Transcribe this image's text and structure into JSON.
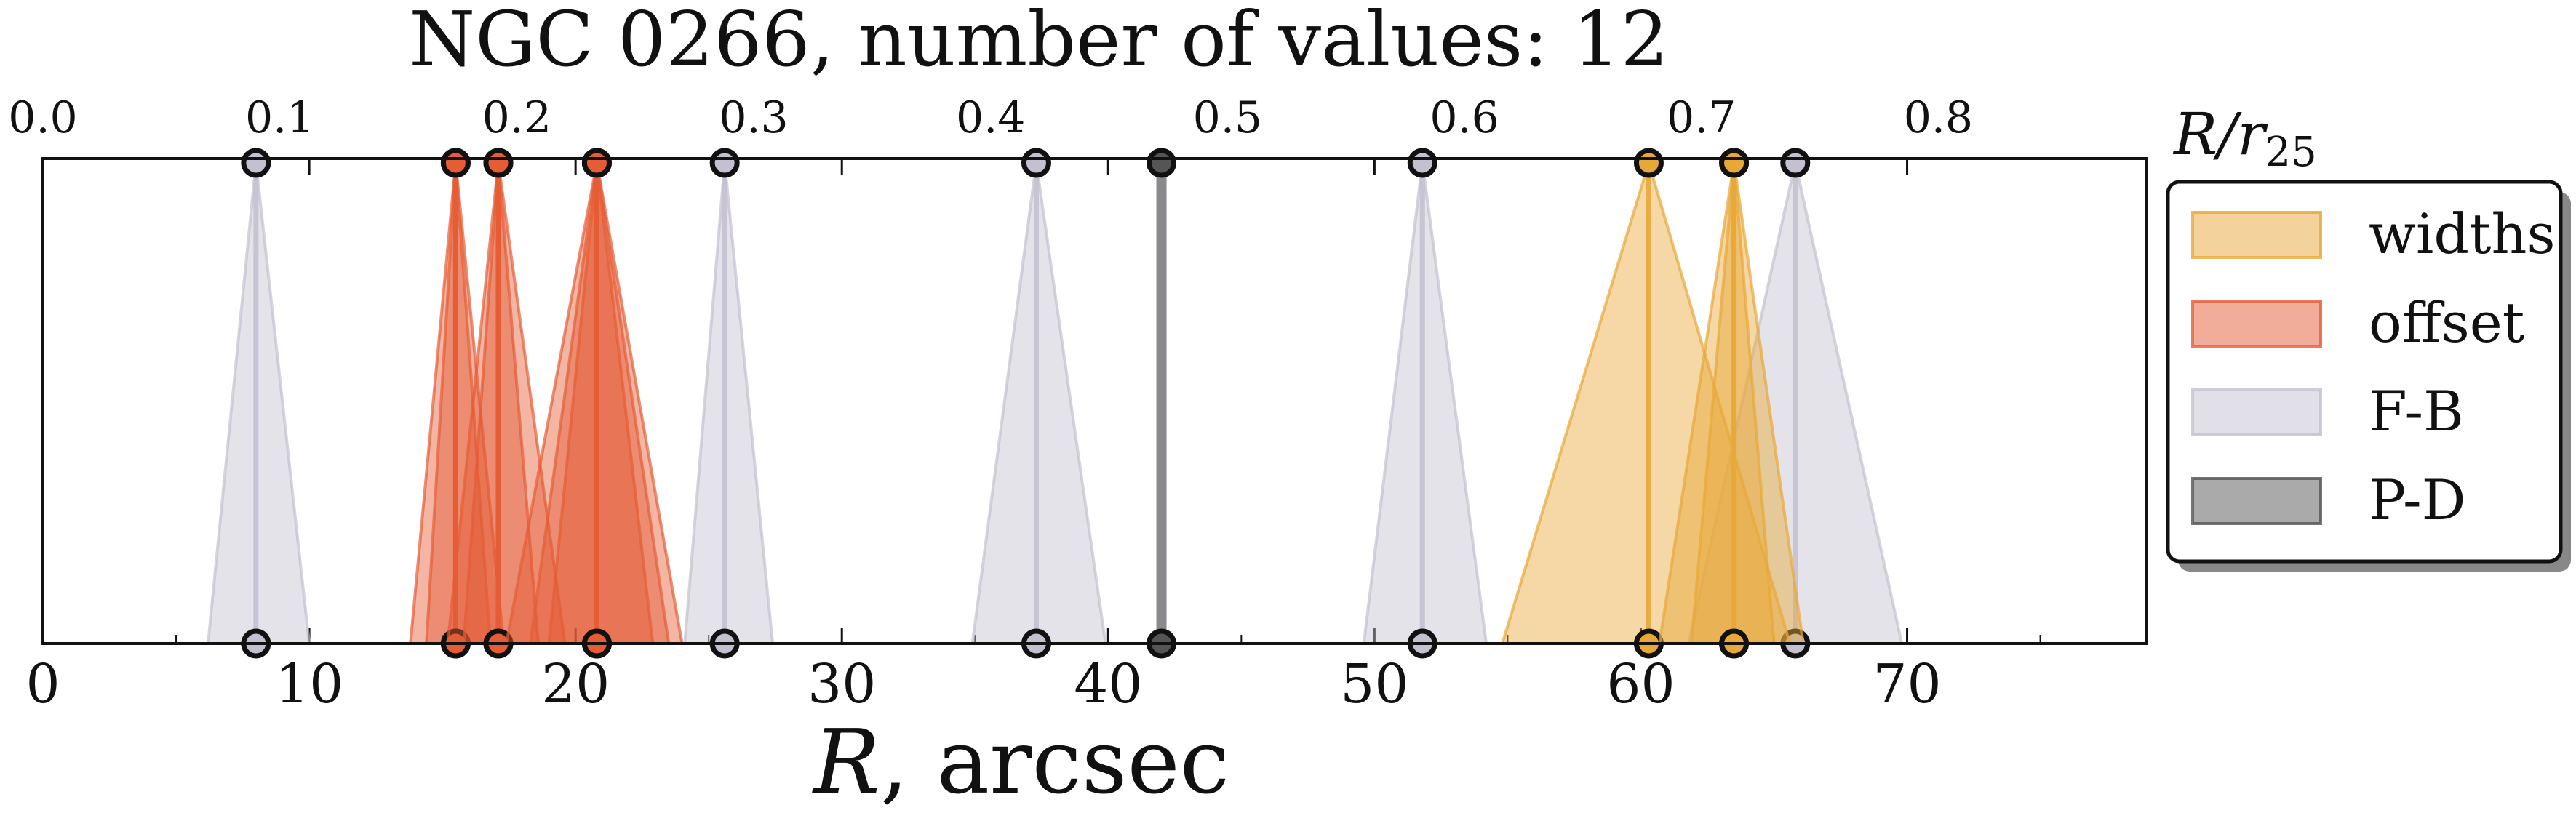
{
  "chart_data": {
    "type": "area",
    "title": "NGC 0266, number of values: 12",
    "xlabel": "R, arcsec",
    "xlabel_italic": "R",
    "xlabel_rest": ", arcsec",
    "top_axis_label": "R/r25",
    "top_axis_label_main": "R/r",
    "top_axis_label_sub": "25",
    "xlim": [
      0,
      79
    ],
    "top_xlim": [
      0.0,
      0.888
    ],
    "x_ticks": [
      "0",
      "10",
      "20",
      "30",
      "40",
      "50",
      "60",
      "70"
    ],
    "top_ticks": [
      "0.0",
      "0.1",
      "0.2",
      "0.3",
      "0.4",
      "0.5",
      "0.6",
      "0.7",
      "0.8"
    ],
    "grid": false,
    "legend_position": "right",
    "legend": [
      {
        "label": "widths",
        "color": "#e8a838"
      },
      {
        "label": "offset",
        "color": "#e55c35"
      },
      {
        "label": "F-B",
        "color": "#c4c0d0"
      },
      {
        "label": "P-D",
        "color": "#555555"
      }
    ],
    "series": [
      {
        "name": "F-B",
        "color": "#c4c0d0",
        "triangles": [
          {
            "center": 8.0,
            "low": 6.2,
            "high": 10.0
          },
          {
            "center": 25.6,
            "low": 24.1,
            "high": 27.4
          },
          {
            "center": 37.3,
            "low": 34.9,
            "high": 39.9
          },
          {
            "center": 51.8,
            "low": 49.6,
            "high": 54.2
          },
          {
            "center": 65.8,
            "low": 61.8,
            "high": 69.8
          }
        ]
      },
      {
        "name": "offset",
        "color": "#e55c35",
        "triangles": [
          {
            "center": 15.5,
            "low": 13.8,
            "high": 17.3
          },
          {
            "center": 15.5,
            "low": 14.4,
            "high": 16.8
          },
          {
            "center": 17.1,
            "low": 15.8,
            "high": 18.6
          },
          {
            "center": 17.1,
            "low": 15.2,
            "high": 19.6
          },
          {
            "center": 20.8,
            "low": 17.4,
            "high": 24.0
          },
          {
            "center": 20.8,
            "low": 18.3,
            "high": 23.5
          },
          {
            "center": 20.8,
            "low": 19.0,
            "high": 22.9
          }
        ]
      },
      {
        "name": "widths",
        "color": "#e8a838",
        "triangles": [
          {
            "center": 60.3,
            "low": 54.8,
            "high": 65.6
          },
          {
            "center": 63.5,
            "low": 60.7,
            "high": 66.1
          },
          {
            "center": 63.5,
            "low": 61.9,
            "high": 65.0
          }
        ]
      },
      {
        "name": "P-D",
        "color": "#555555",
        "lines": [
          42.0
        ]
      }
    ]
  }
}
